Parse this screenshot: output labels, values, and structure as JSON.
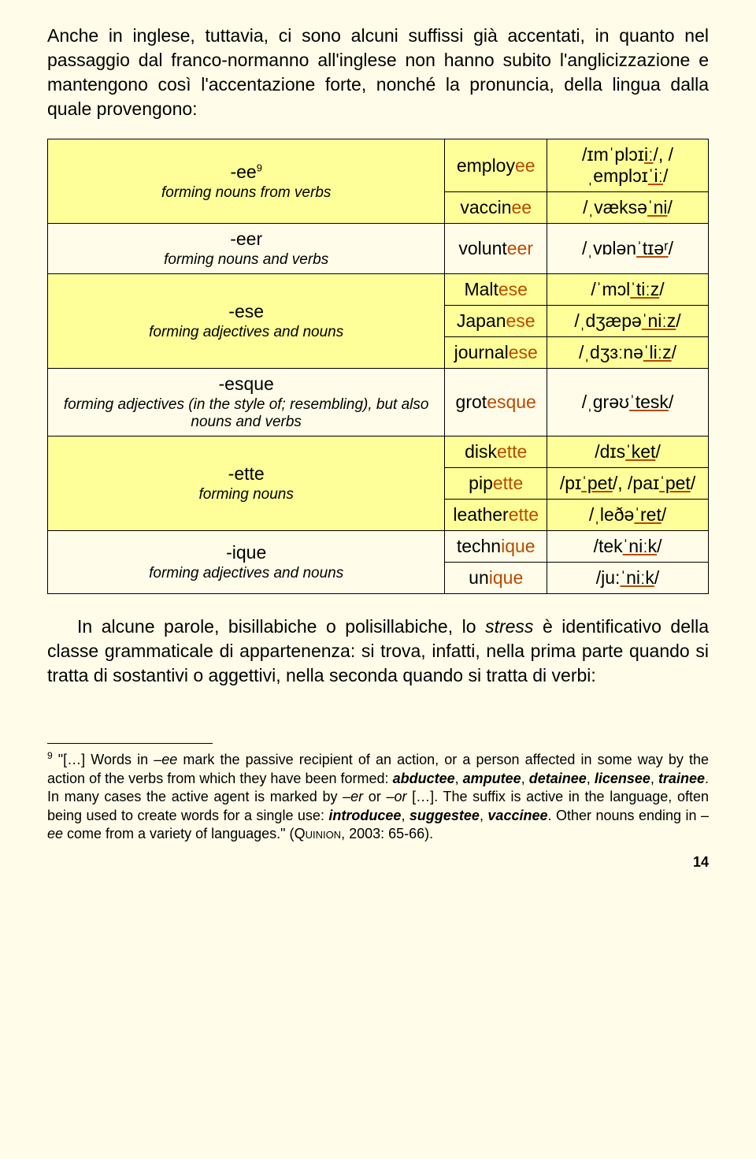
{
  "intro": "Anche in inglese, tuttavia, ci sono alcuni suffissi già accentati, in quanto nel passaggio dal franco-normanno all'inglese non hanno subito l'anglicizzazione e mantengono così l'accentazione forte, nonché la pronuncia, della lingua dalla quale provengono:",
  "table": {
    "rows": [
      {
        "highlight": true,
        "suffix_name": "-ee",
        "suffix_sup": "9",
        "suffix_desc": "forming nouns from verbs",
        "examples": [
          "employ<span class=\"hl\">ee</span>",
          "vaccin<span class=\"hl\">ee</span>"
        ],
        "ipas": [
          "/ɪmˈplɔɪ<span class=\"ul-hl\">iː</span>/, /ˌemplɔɪ<span class=\"ul-hl\">ˈiː</span>/",
          "/ˌvæksə<span class=\"ul-hl\">ˈni</span>/"
        ]
      },
      {
        "highlight": false,
        "suffix_name": "-eer",
        "suffix_desc": "forming nouns and verbs",
        "examples": [
          "volunt<span class=\"hl\">eer</span>"
        ],
        "ipas": [
          "/ˌvɒlən<span class=\"ul-hl\">ˈtɪəʳ</span>/"
        ]
      },
      {
        "highlight": true,
        "suffix_name": "-ese",
        "suffix_desc": "forming adjectives and nouns",
        "examples": [
          "Malt<span class=\"hl\">ese</span>",
          "Japan<span class=\"hl\">ese</span>",
          "journal<span class=\"hl\">ese</span>"
        ],
        "ipas": [
          "/ˈmɔl<span class=\"ul-hl\">ˈtiːz</span>/",
          "/ˌdʒæpə<span class=\"ul-hl\">ˈniːz</span>/",
          "/ˌdʒɜːnə<span class=\"ul-hl\">ˈliːz</span>/"
        ]
      },
      {
        "highlight": false,
        "suffix_name": "-esque",
        "suffix_desc": "forming adjectives (in the style of; resembling), but also nouns and verbs",
        "examples": [
          "grot<span class=\"hl\">esque</span>"
        ],
        "ipas": [
          "/ˌɡrəʊ<span class=\"ul-hl\">ˈtesk</span>/"
        ]
      },
      {
        "highlight": true,
        "suffix_name": "-ette",
        "suffix_desc": "forming nouns",
        "examples": [
          "disk<span class=\"hl\">ette</span>",
          "pip<span class=\"hl\">ette</span>",
          "leather<span class=\"hl\">ette</span>"
        ],
        "ipas": [
          "/dɪs<span class=\"ul-hl\">ˈket</span>/",
          "/pɪ<span class=\"ul-hl\">ˈpet</span>/, /paɪ<span class=\"ul-hl\">ˈpet</span>/",
          "/ˌleðə<span class=\"ul-hl\">ˈret</span>/"
        ]
      },
      {
        "highlight": false,
        "suffix_name": "-ique",
        "suffix_desc": "forming adjectives and nouns",
        "examples": [
          "techn<span class=\"hl\">ique</span>",
          "un<span class=\"hl\">ique</span>"
        ],
        "ipas": [
          "/tek<span class=\"ul-hl\">ˈniːk</span>/",
          "/ju:<span class=\"ul-hl\">ˈniːk</span>/"
        ]
      }
    ]
  },
  "para2_pre": "In alcune parole, bisillabiche o polisillabiche, lo ",
  "para2_stress": "stress",
  "para2_post": " è identificativo della classe grammaticale di appartenenza: si trova, infatti, nella prima parte quando si tratta di sostantivi o aggettivi, nella seconda quando si tratta di verbi:",
  "footnote": {
    "num": "9",
    "body_pre": " \"[…] Words in ",
    "ee1": "–ee",
    "body_2": " mark the passive recipient of an action, or a person affected in some way by the action of the verbs from which they have been formed: ",
    "list1": "abductee",
    "c1": ", ",
    "list2": "amputee",
    "c2": ", ",
    "list3": "detainee",
    "c3": ", ",
    "list4": "licensee",
    "c4": ", ",
    "list5": "trainee",
    "body_3": ". In many cases the active agent is marked by ",
    "er": "–er",
    "body_4": " or ",
    "or": "–or",
    "body_5": " […]. The suffix is active in the language, often being used to create words for a single use: ",
    "list6": "introducee",
    "c5": ", ",
    "list7": "suggestee",
    "c6": ", ",
    "list8": "vaccinee",
    "body_6": ". Other nouns ending in ",
    "ee2": "–ee",
    "body_7": " come from a variety of languages.\" (",
    "author": "Quinion",
    "body_8": ", 2003: 65-66)."
  },
  "pagenum": "14"
}
